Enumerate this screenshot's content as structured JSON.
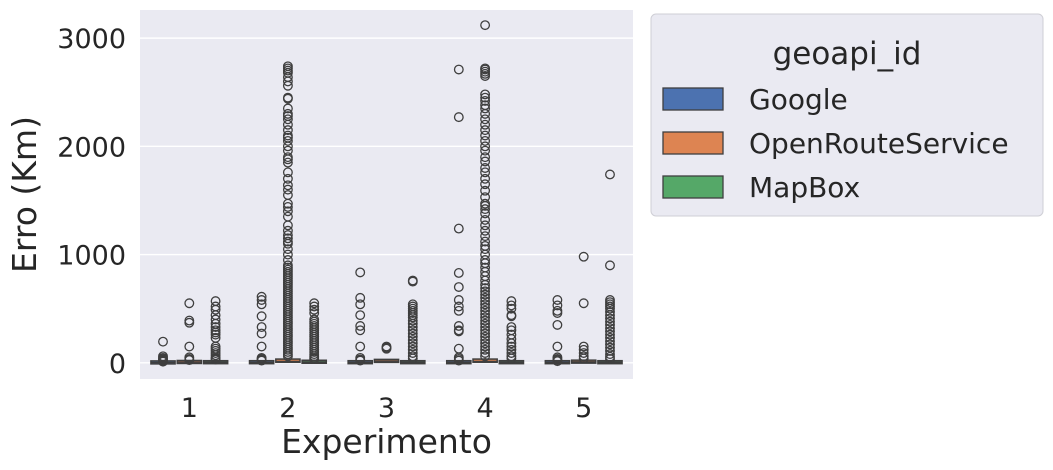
{
  "chart_data": {
    "type": "box",
    "xlabel": "Experimento",
    "ylabel": "Erro (Km)",
    "categories": [
      "1",
      "2",
      "3",
      "4",
      "5"
    ],
    "ylim": [
      -150,
      3260
    ],
    "yticks": [
      0,
      1000,
      2000,
      3000
    ],
    "grid": true,
    "legend": {
      "title": "geoapi_id",
      "placement": "right-outside-top"
    },
    "series": [
      {
        "name": "Google",
        "color": "#4c72b0",
        "boxes": [
          {
            "q1": 0,
            "median": 3,
            "q3": 8,
            "whisker_low": 0,
            "whisker_high": 15,
            "outliers": [
              195,
              60,
              45,
              35,
              28,
              20,
              15,
              10
            ]
          },
          {
            "q1": 1,
            "median": 4,
            "q3": 10,
            "whisker_low": 0,
            "whisker_high": 20,
            "outliers": [
              610,
              580,
              540,
              430,
              330,
              270,
              150,
              45,
              35,
              28,
              20
            ]
          },
          {
            "q1": 1,
            "median": 4,
            "q3": 10,
            "whisker_low": 0,
            "whisker_high": 20,
            "outliers": [
              835,
              600,
              540,
              440,
              340,
              300,
              150,
              45,
              30,
              20
            ]
          },
          {
            "q1": 1,
            "median": 4,
            "q3": 10,
            "whisker_low": 0,
            "whisker_high": 20,
            "outliers": [
              2710,
              2270,
              1240,
              830,
              700,
              580,
              520,
              480,
              340,
              300,
              290,
              130,
              50,
              35,
              20
            ]
          },
          {
            "q1": 1,
            "median": 4,
            "q3": 10,
            "whisker_low": 0,
            "whisker_high": 20,
            "outliers": [
              580,
              530,
              480,
              460,
              350,
              150,
              50,
              35,
              25,
              15
            ]
          }
        ]
      },
      {
        "name": "OpenRouteService",
        "color": "#dd8452",
        "boxes": [
          {
            "q1": 2,
            "median": 6,
            "q3": 12,
            "whisker_low": 0,
            "whisker_high": 25,
            "outliers": [
              550,
              390,
              370,
              150,
              50,
              35,
              25
            ]
          },
          {
            "q1": 5,
            "median": 12,
            "q3": 25,
            "whisker_low": 0,
            "whisker_high": 45,
            "outliers": [
              2740,
              2720,
              2700,
              2680,
              2640,
              2600,
              2560,
              2450,
              2440,
              2350,
              2300,
              2280,
              2250,
              2200,
              2150,
              2100,
              2080,
              2050,
              2000,
              1960,
              1900,
              1880,
              1850,
              1760,
              1700,
              1640,
              1600,
              1550,
              1470,
              1440,
              1400,
              1350,
              1270,
              1220,
              1180,
              1150,
              1120,
              1100,
              1050,
              1000,
              950,
              900,
              880,
              860,
              840,
              820,
              800,
              780,
              760,
              740,
              720,
              700,
              680,
              660,
              640,
              620,
              600,
              580,
              560,
              540,
              520,
              500,
              480,
              460,
              440,
              420,
              400,
              380,
              360,
              340,
              320,
              300,
              280,
              260,
              240,
              220,
              200,
              180,
              160,
              140,
              120,
              100,
              80,
              60
            ]
          },
          {
            "q1": 5,
            "median": 15,
            "q3": 22,
            "whisker_low": 0,
            "whisker_high": 30,
            "outliers": [
              150,
              140,
              130
            ]
          },
          {
            "q1": 5,
            "median": 12,
            "q3": 25,
            "whisker_low": 0,
            "whisker_high": 45,
            "outliers": [
              3120,
              2720,
              2710,
              2690,
              2670,
              2650,
              2480,
              2450,
              2420,
              2380,
              2350,
              2300,
              2250,
              2200,
              2150,
              2100,
              2050,
              2000,
              1960,
              1900,
              1860,
              1800,
              1760,
              1700,
              1650,
              1590,
              1530,
              1470,
              1450,
              1420,
              1380,
              1320,
              1270,
              1220,
              1170,
              1120,
              1080,
              1050,
              1000,
              950,
              920,
              880,
              840,
              800,
              760,
              720,
              690,
              660,
              630,
              600,
              570,
              540,
              510,
              480,
              450,
              420,
              390,
              360,
              330,
              300,
              270,
              240,
              210,
              180,
              150,
              120,
              90,
              60
            ]
          },
          {
            "q1": 3,
            "median": 8,
            "q3": 15,
            "whisker_low": 0,
            "whisker_high": 30,
            "outliers": [
              980,
              550,
              150,
              120,
              90,
              60,
              40
            ]
          }
        ]
      },
      {
        "name": "MapBox",
        "color": "#55a868",
        "boxes": [
          {
            "q1": 2,
            "median": 5,
            "q3": 10,
            "whisker_low": 0,
            "whisker_high": 20,
            "outliers": [
              570,
              520,
              490,
              440,
              400,
              360,
              330,
              300,
              280,
              260,
              230,
              150,
              130,
              110,
              90,
              70,
              50,
              40,
              30
            ]
          },
          {
            "q1": 3,
            "median": 7,
            "q3": 14,
            "whisker_low": 0,
            "whisker_high": 28,
            "outliers": [
              550,
              520,
              490,
              460,
              400,
              380,
              360,
              340,
              320,
              300,
              280,
              260,
              240,
              220,
              200,
              180,
              160,
              140,
              120,
              100,
              80,
              60,
              45,
              35
            ]
          },
          {
            "q1": 2,
            "median": 5,
            "q3": 10,
            "whisker_low": 0,
            "whisker_high": 20,
            "outliers": [
              760,
              750,
              540,
              520,
              500,
              480,
              460,
              440,
              420,
              390,
              360,
              330,
              300,
              270,
              240,
              210,
              180,
              150,
              120,
              90,
              60,
              40
            ]
          },
          {
            "q1": 2,
            "median": 5,
            "q3": 10,
            "whisker_low": 0,
            "whisker_high": 20,
            "outliers": [
              570,
              530,
              500,
              440,
              430,
              330,
              300,
              260,
              220,
              180,
              150,
              120,
              90,
              60,
              40
            ]
          },
          {
            "q1": 2,
            "median": 5,
            "q3": 10,
            "whisker_low": 0,
            "whisker_high": 20,
            "outliers": [
              1740,
              900,
              580,
              560,
              540,
              520,
              500,
              470,
              440,
              410,
              380,
              350,
              320,
              290,
              260,
              230,
              200,
              170,
              140,
              110,
              80,
              55,
              35
            ]
          }
        ]
      }
    ]
  }
}
